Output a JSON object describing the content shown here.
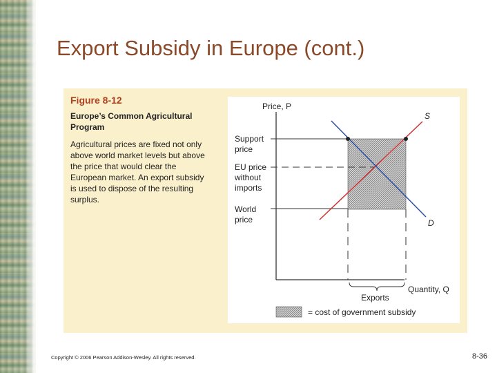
{
  "slide": {
    "title": "Export Subsidy in Europe (cont.)",
    "footer": "Copyright © 2006 Pearson Addison-Wesley. All rights reserved.",
    "page_number": "8-36"
  },
  "figure": {
    "label": "Figure 8-12",
    "title": "Europe’s Common Agricultural Program",
    "caption": "Agricultural prices are fixed not only above world market levels but above the price that would clear the European market. An export subsidy is used to dispose of the resulting surplus."
  },
  "diagram": {
    "y_axis_label": "Price, P",
    "x_axis_label": "Quantity, Q",
    "supply_label": "S",
    "demand_label": "D",
    "support_price_label": [
      "Support",
      "price"
    ],
    "eu_price_label": [
      "EU price",
      "without",
      "imports"
    ],
    "world_price_label": [
      "World",
      "price"
    ],
    "exports_label": "Exports",
    "legend_text": "= cost of government subsidy",
    "colors": {
      "supply": "#d03030",
      "demand": "#2a50a8",
      "panel": "#fbf0cc",
      "title": "#8a4a2a",
      "figure_label": "#b0411f"
    }
  }
}
